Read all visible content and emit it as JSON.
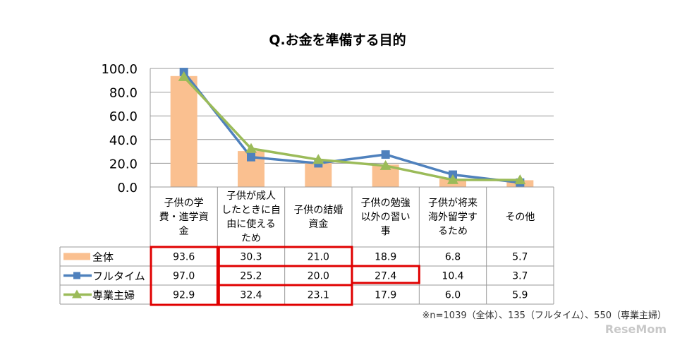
{
  "chart_data": {
    "type": "bar+line",
    "title": "Q.お金を準備する目的",
    "ylim": [
      0,
      100
    ],
    "yticks": [
      "0.0",
      "20.0",
      "40.0",
      "60.0",
      "80.0",
      "100.0"
    ],
    "categories": [
      [
        "子供の学",
        "費・進学資",
        "金"
      ],
      [
        "子供が成人",
        "したときに自",
        "由に使える",
        "ため"
      ],
      [
        "子供の結婚",
        "資金"
      ],
      [
        "子供の勉強",
        "以外の習い",
        "事"
      ],
      [
        "子供が将来",
        "海外留学す",
        "るため"
      ],
      [
        "その他"
      ]
    ],
    "series": [
      {
        "name": "全体",
        "type": "bar",
        "color": "#FAC090",
        "values": [
          93.6,
          30.3,
          21.0,
          18.9,
          6.8,
          5.7
        ]
      },
      {
        "name": "フルタイム",
        "type": "line",
        "marker": "square",
        "color": "#4F81BD",
        "values": [
          97.0,
          25.2,
          20.0,
          27.4,
          10.4,
          3.7
        ]
      },
      {
        "name": "専業主婦",
        "type": "line",
        "marker": "triangle",
        "color": "#9BBB59",
        "values": [
          92.9,
          32.4,
          23.1,
          17.9,
          6.0,
          5.9
        ]
      }
    ],
    "highlight_color": "#E00000",
    "note": "※n=1039（全体）、135（フルタイム）、550（専業主婦）"
  },
  "watermark": "ReseMom"
}
